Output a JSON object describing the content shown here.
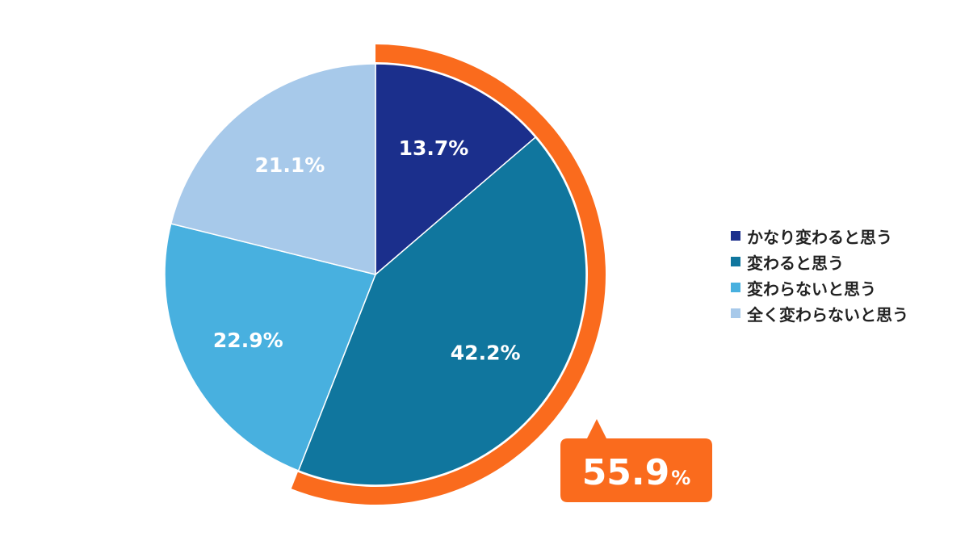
{
  "chart_data": {
    "type": "pie",
    "title": "",
    "unit": "%",
    "categories": [
      "かなり変わると思う",
      "変わると思う",
      "変わらないと思う",
      "全く変わらないと思う"
    ],
    "values": [
      13.7,
      42.2,
      22.9,
      21.1
    ],
    "labels": [
      "13.7%",
      "42.2%",
      "22.9%",
      "21.1%"
    ],
    "colors": [
      "#1b2f8c",
      "#10769e",
      "#48b0df",
      "#a7c9ea"
    ],
    "start_angle": "12 o'clock",
    "direction": "clockwise",
    "legend_position": "right",
    "highlight": {
      "slices": [
        0,
        1
      ],
      "value": "55.9",
      "unit": "%",
      "color": "#fa6b1d"
    }
  }
}
